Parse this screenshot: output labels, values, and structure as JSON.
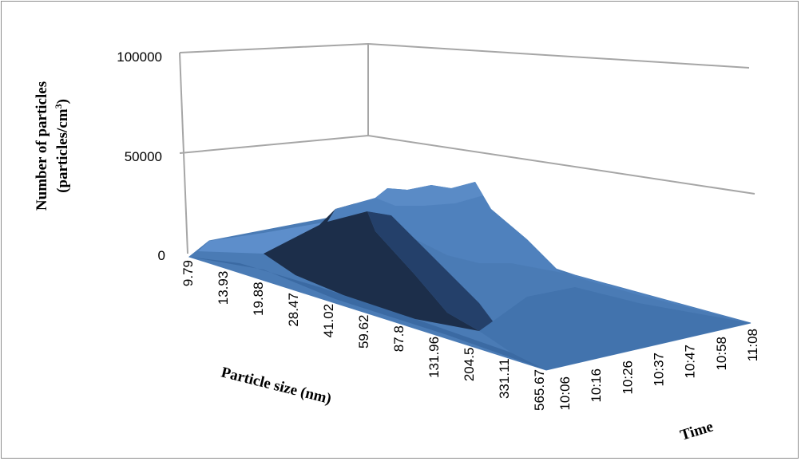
{
  "chart_data": {
    "type": "surface-3d",
    "title": "",
    "zlabel": "Number of particles (particles/cm³)",
    "zlabel_line1": "Number of particles",
    "zlabel_line2_prefix": "(particles/cm",
    "zlabel_line2_sup": "3",
    "zlabel_line2_suffix": ")",
    "xlabel": "Particle size (nm)",
    "ylabel": "Time",
    "z_ticks": [
      "0",
      "50000",
      "100000"
    ],
    "zlim": [
      0,
      100000
    ],
    "x_categories": [
      "9.79",
      "13.93",
      "19.88",
      "28.47",
      "41.02",
      "59.62",
      "87.8",
      "131.96",
      "204.5",
      "331.11",
      "565.67"
    ],
    "y_categories": [
      "10:06",
      "10:16",
      "10:26",
      "10:37",
      "10:47",
      "10:58",
      "11:08"
    ],
    "z_values_by_time": [
      [
        2000,
        3000,
        5000,
        9000,
        19000,
        28000,
        30000,
        23000,
        10000,
        2000,
        500
      ],
      [
        3000,
        4000,
        6000,
        11000,
        23000,
        33000,
        36000,
        28000,
        12000,
        2500,
        500
      ],
      [
        3000,
        4500,
        7000,
        13000,
        26000,
        37000,
        40000,
        31000,
        13000,
        2500,
        500
      ],
      [
        3500,
        5000,
        7500,
        14000,
        28000,
        39000,
        42000,
        32000,
        13000,
        2500,
        500
      ],
      [
        3500,
        5000,
        7500,
        14000,
        28000,
        40000,
        42000,
        31000,
        12000,
        2000,
        500
      ],
      [
        3000,
        4500,
        7000,
        13000,
        27000,
        38000,
        40000,
        30000,
        11000,
        2000,
        500
      ],
      [
        3000,
        4500,
        6500,
        12000,
        25000,
        36000,
        38000,
        28000,
        10000,
        2000,
        500
      ]
    ],
    "surface_color": "#4f81bd",
    "grid": true
  }
}
